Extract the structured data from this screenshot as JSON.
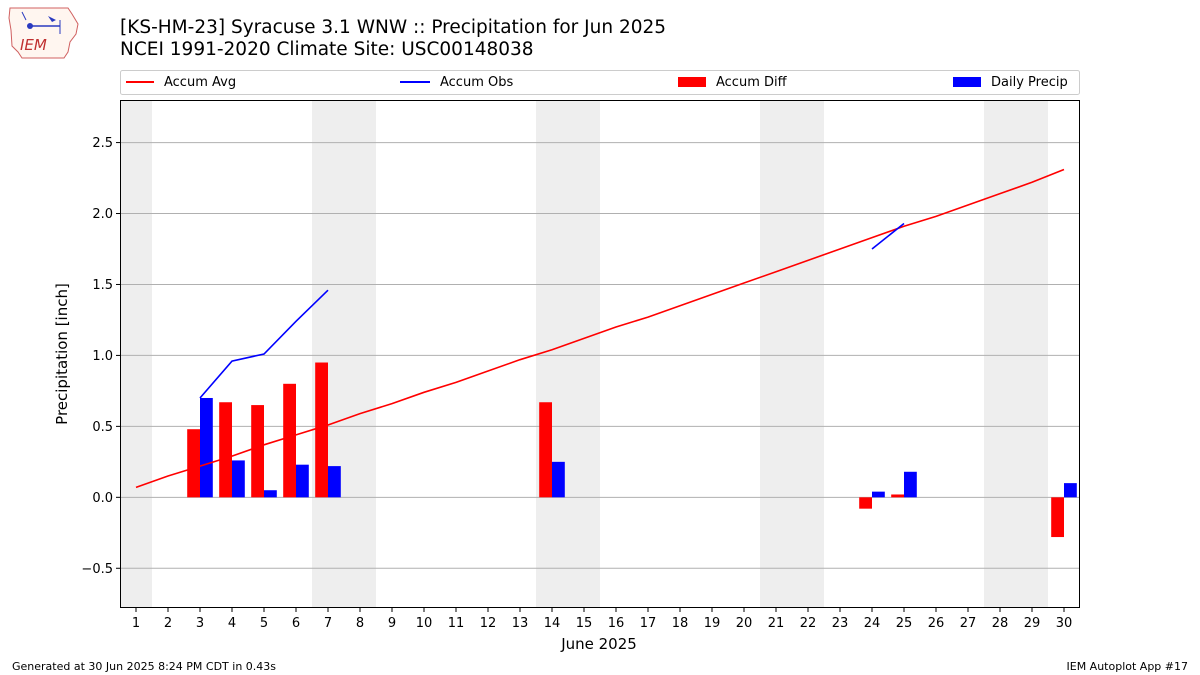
{
  "header": {
    "title_line1": "[KS-HM-23] Syracuse 3.1 WNW :: Precipitation for Jun 2025",
    "title_line2": "NCEI 1991-2020 Climate Site: USC00148038"
  },
  "logo": {
    "text": "IEM",
    "icon": "iowa-state-outline-icon"
  },
  "footer": {
    "generated": "Generated at 30 Jun 2025 8:24 PM CDT in 0.43s",
    "app": "IEM Autoplot App #17"
  },
  "colors": {
    "accum_avg": "#ff0000",
    "accum_obs": "#0000ff",
    "accum_diff": "#ff0000",
    "daily_precip": "#0000ff",
    "weekend_band": "#eeeeee",
    "grid": "#b0b0b0"
  },
  "chart_data": {
    "type": "bar",
    "xlabel": "June 2025",
    "ylabel": "Precipitation [inch]",
    "ylim": [
      -0.78,
      2.8
    ],
    "yticks": [
      -0.5,
      0.0,
      0.5,
      1.0,
      1.5,
      2.0,
      2.5
    ],
    "ytick_labels": [
      "−0.5",
      "0.0",
      "0.5",
      "1.0",
      "1.5",
      "2.0",
      "2.5"
    ],
    "xlim": [
      0.5,
      30.5
    ],
    "categories": [
      "1",
      "2",
      "3",
      "4",
      "5",
      "6",
      "7",
      "8",
      "9",
      "10",
      "11",
      "12",
      "13",
      "14",
      "15",
      "16",
      "17",
      "18",
      "19",
      "20",
      "21",
      "22",
      "23",
      "24",
      "25",
      "26",
      "27",
      "28",
      "29",
      "30"
    ],
    "grid": "y",
    "legend_position": "top",
    "weekend_days": [
      1,
      7,
      8,
      14,
      15,
      21,
      22,
      28,
      29
    ],
    "legend": [
      "Accum Avg",
      "Accum Obs",
      "Accum Diff",
      "Daily Precip"
    ],
    "accum_avg": {
      "name": "Accum Avg",
      "days": [
        1,
        2,
        3,
        4,
        5,
        6,
        7,
        8,
        9,
        10,
        11,
        12,
        13,
        14,
        15,
        16,
        17,
        18,
        19,
        20,
        21,
        22,
        23,
        24,
        25,
        26,
        27,
        28,
        29,
        30
      ],
      "values": [
        0.07,
        0.15,
        0.22,
        0.29,
        0.37,
        0.44,
        0.51,
        0.59,
        0.66,
        0.74,
        0.81,
        0.89,
        0.97,
        1.04,
        1.12,
        1.2,
        1.27,
        1.35,
        1.43,
        1.51,
        1.59,
        1.67,
        1.75,
        1.83,
        1.91,
        1.98,
        2.06,
        2.14,
        2.22,
        2.31
      ]
    },
    "accum_obs": {
      "name": "Accum Obs",
      "segments": [
        {
          "days": [
            3,
            4,
            5,
            6,
            7
          ],
          "values": [
            0.7,
            0.96,
            1.01,
            1.24,
            1.46
          ]
        },
        {
          "days": [
            24,
            25
          ],
          "values": [
            1.75,
            1.93
          ]
        }
      ]
    },
    "accum_diff": {
      "name": "Accum Diff",
      "days": [
        3,
        4,
        5,
        6,
        7,
        14,
        24,
        25,
        30
      ],
      "values": [
        0.48,
        0.67,
        0.65,
        0.8,
        0.95,
        0.67,
        -0.08,
        0.02,
        -0.28
      ]
    },
    "daily_precip": {
      "name": "Daily Precip",
      "days": [
        3,
        4,
        5,
        6,
        7,
        14,
        24,
        25,
        30
      ],
      "values": [
        0.7,
        0.26,
        0.05,
        0.23,
        0.22,
        0.25,
        0.04,
        0.18,
        0.1
      ]
    }
  }
}
